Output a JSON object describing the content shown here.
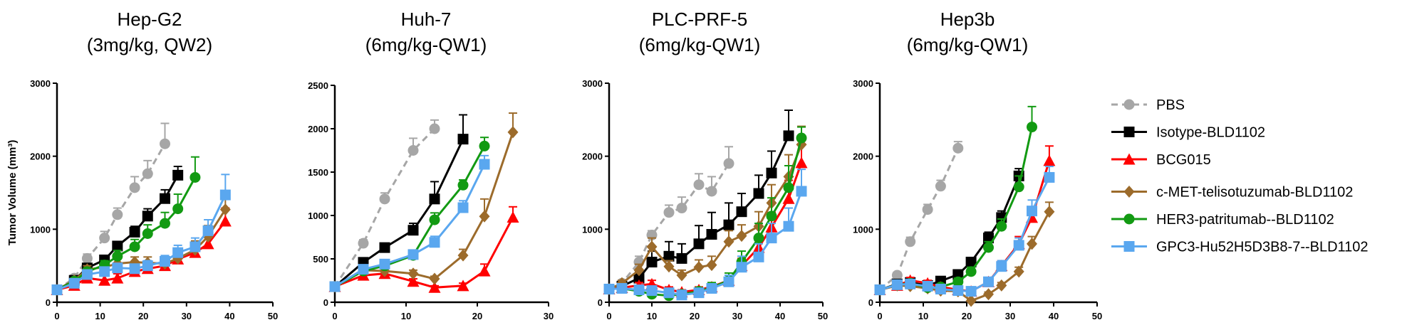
{
  "colors": {
    "PBS": "#a6a6a6",
    "Isotype-BLD1102": "#000000",
    "BCG015": "#ff0000",
    "c-MET-telisotuzumab-BLD1102": "#9c6b2b",
    "HER3-patritumab--BLD1102": "#129a12",
    "GPC3-Hu52H5D3B8-7--BLD1102": "#5aa7ef"
  },
  "legend": {
    "entries": [
      {
        "name": "PBS",
        "marker": "circle",
        "dashed": true
      },
      {
        "name": "Isotype-BLD1102",
        "marker": "square",
        "dashed": false
      },
      {
        "name": "BCG015",
        "marker": "triangle",
        "dashed": false
      },
      {
        "name": "c-MET-telisotuzumab-BLD1102",
        "marker": "diamond",
        "dashed": false
      },
      {
        "name": "HER3-patritumab--BLD1102",
        "marker": "circle",
        "dashed": false
      },
      {
        "name": "GPC3-Hu52H5D3B8-7--BLD1102",
        "marker": "square",
        "dashed": false
      }
    ]
  },
  "chart_data": [
    {
      "type": "line",
      "title": "Hep-G2",
      "subtitle": "(3mg/kg, QW2)",
      "ylabel": "Tumor Volume (mm³)",
      "xlim": [
        0,
        50
      ],
      "xticks": [
        0,
        10,
        20,
        30,
        40,
        50
      ],
      "ylim": [
        0,
        3000
      ],
      "yticks": [
        0,
        1000,
        2000,
        3000
      ],
      "series": [
        {
          "name": "PBS",
          "x": [
            0,
            4,
            7,
            11,
            14,
            18,
            21,
            25
          ],
          "y": [
            170,
            330,
            600,
            880,
            1200,
            1570,
            1760,
            2170
          ],
          "err": [
            20,
            40,
            60,
            90,
            90,
            150,
            180,
            280
          ]
        },
        {
          "name": "Isotype-BLD1102",
          "x": [
            0,
            4,
            7,
            11,
            14,
            18,
            21,
            25,
            28
          ],
          "y": [
            170,
            300,
            470,
            580,
            770,
            960,
            1180,
            1420,
            1740
          ],
          "err": [
            20,
            30,
            50,
            50,
            60,
            80,
            100,
            120,
            120
          ]
        },
        {
          "name": "BCG015",
          "x": [
            0,
            4,
            7,
            11,
            14,
            18,
            21,
            25,
            28,
            32,
            35,
            39
          ],
          "y": [
            170,
            230,
            330,
            300,
            330,
            420,
            460,
            500,
            590,
            680,
            800,
            1110
          ],
          "err": [
            20,
            30,
            40,
            60,
            60,
            60,
            70,
            80,
            100,
            120,
            150,
            180
          ]
        },
        {
          "name": "c-MET-telisotuzumab-BLD1102",
          "x": [
            0,
            4,
            7,
            11,
            14,
            18,
            21,
            25,
            28,
            32,
            35,
            39
          ],
          "y": [
            170,
            300,
            450,
            480,
            530,
            550,
            540,
            530,
            600,
            720,
            900,
            1270
          ],
          "err": [
            20,
            30,
            50,
            60,
            70,
            70,
            80,
            80,
            100,
            120,
            150,
            200
          ]
        },
        {
          "name": "HER3-patritumab--BLD1102",
          "x": [
            0,
            4,
            7,
            11,
            14,
            18,
            21,
            25,
            28,
            32
          ],
          "y": [
            170,
            290,
            420,
            510,
            630,
            760,
            940,
            1080,
            1280,
            1710
          ],
          "err": [
            20,
            30,
            50,
            60,
            80,
            100,
            120,
            150,
            200,
            280
          ]
        },
        {
          "name": "GPC3-Hu52H5D3B8-7--BLD1102",
          "x": [
            0,
            4,
            7,
            11,
            14,
            18,
            21,
            25,
            28,
            32,
            35,
            39
          ],
          "y": [
            170,
            260,
            380,
            420,
            470,
            460,
            500,
            560,
            680,
            760,
            980,
            1470
          ],
          "err": [
            20,
            30,
            40,
            50,
            60,
            60,
            70,
            80,
            100,
            120,
            150,
            280
          ]
        }
      ]
    },
    {
      "type": "line",
      "title": "Huh-7",
      "subtitle": "(6mg/kg-QW1)",
      "ylabel": "",
      "xlim": [
        0,
        30
      ],
      "xticks": [
        0,
        10,
        20,
        30
      ],
      "ylim": [
        0,
        2500
      ],
      "yticks": [
        0,
        500,
        1000,
        1500,
        2000,
        2500
      ],
      "series": [
        {
          "name": "PBS",
          "x": [
            0,
            4,
            7,
            11,
            14
          ],
          "y": [
            180,
            680,
            1190,
            1750,
            2000
          ],
          "err": [
            20,
            40,
            70,
            140,
            100
          ]
        },
        {
          "name": "Isotype-BLD1102",
          "x": [
            0,
            4,
            7,
            11,
            14,
            18
          ],
          "y": [
            180,
            460,
            630,
            830,
            1190,
            1880
          ],
          "err": [
            20,
            40,
            50,
            80,
            200,
            280
          ]
        },
        {
          "name": "BCG015",
          "x": [
            0,
            4,
            7,
            11,
            14,
            18,
            21,
            25
          ],
          "y": [
            180,
            310,
            330,
            240,
            170,
            190,
            360,
            980
          ],
          "err": [
            20,
            40,
            40,
            30,
            20,
            30,
            80,
            120
          ]
        },
        {
          "name": "c-MET-telisotuzumab-BLD1102",
          "x": [
            0,
            4,
            7,
            11,
            14,
            18,
            21,
            25
          ],
          "y": [
            180,
            370,
            360,
            330,
            270,
            540,
            990,
            1960
          ],
          "err": [
            20,
            40,
            40,
            40,
            30,
            70,
            200,
            220
          ]
        },
        {
          "name": "HER3-patritumab--BLD1102",
          "x": [
            0,
            4,
            7,
            11,
            14,
            18,
            21
          ],
          "y": [
            180,
            360,
            420,
            540,
            950,
            1350,
            1800
          ],
          "err": [
            20,
            40,
            40,
            40,
            80,
            60,
            100
          ]
        },
        {
          "name": "GPC3-Hu52H5D3B8-7--BLD1102",
          "x": [
            0,
            4,
            7,
            11,
            14,
            18,
            21
          ],
          "y": [
            180,
            380,
            440,
            550,
            690,
            1090,
            1590
          ],
          "err": [
            20,
            40,
            40,
            40,
            70,
            80,
            100
          ]
        }
      ]
    },
    {
      "type": "line",
      "title": "PLC-PRF-5",
      "subtitle": "(6mg/kg-QW1)",
      "ylabel": "",
      "xlim": [
        0,
        50
      ],
      "xticks": [
        0,
        10,
        20,
        30,
        40,
        50
      ],
      "ylim": [
        0,
        3000
      ],
      "yticks": [
        0,
        1000,
        2000,
        3000
      ],
      "series": [
        {
          "name": "PBS",
          "x": [
            0,
            3,
            7,
            10,
            14,
            17,
            21,
            24,
            28
          ],
          "y": [
            180,
            260,
            550,
            920,
            1230,
            1290,
            1610,
            1520,
            1900
          ],
          "err": [
            20,
            40,
            80,
            60,
            100,
            150,
            150,
            200,
            230
          ]
        },
        {
          "name": "Isotype-BLD1102",
          "x": [
            0,
            3,
            7,
            10,
            14,
            17,
            21,
            24,
            28,
            31,
            35,
            38,
            42
          ],
          "y": [
            180,
            220,
            330,
            550,
            630,
            600,
            800,
            930,
            1060,
            1240,
            1490,
            1770,
            2280
          ],
          "err": [
            20,
            30,
            80,
            150,
            200,
            200,
            250,
            300,
            300,
            250,
            250,
            300,
            350
          ]
        },
        {
          "name": "BCG015",
          "x": [
            0,
            3,
            7,
            10,
            14,
            17,
            21,
            24,
            28,
            31,
            35,
            38,
            42,
            45
          ],
          "y": [
            180,
            200,
            230,
            250,
            170,
            140,
            170,
            210,
            300,
            500,
            750,
            1030,
            1420,
            1910
          ],
          "err": [
            20,
            30,
            40,
            50,
            40,
            30,
            40,
            50,
            70,
            100,
            150,
            200,
            250,
            300
          ]
        },
        {
          "name": "c-MET-telisotuzumab-BLD1102",
          "x": [
            0,
            3,
            7,
            10,
            14,
            17,
            21,
            24,
            28,
            31,
            35,
            38,
            42,
            45
          ],
          "y": [
            180,
            260,
            440,
            760,
            490,
            370,
            480,
            510,
            830,
            910,
            1040,
            1360,
            1720,
            2160
          ],
          "err": [
            20,
            40,
            80,
            120,
            80,
            70,
            100,
            120,
            150,
            150,
            200,
            250,
            300,
            250
          ]
        },
        {
          "name": "HER3-patritumab--BLD1102",
          "x": [
            0,
            3,
            7,
            10,
            14,
            17,
            21,
            24,
            28,
            31,
            35,
            38,
            42,
            45
          ],
          "y": [
            180,
            190,
            150,
            110,
            90,
            110,
            150,
            200,
            300,
            550,
            880,
            1180,
            1570,
            2250
          ],
          "err": [
            20,
            30,
            40,
            40,
            30,
            40,
            50,
            70,
            100,
            150,
            200,
            250,
            300,
            150
          ]
        },
        {
          "name": "GPC3-Hu52H5D3B8-7--BLD1102",
          "x": [
            0,
            3,
            7,
            10,
            14,
            17,
            21,
            24,
            28,
            31,
            35,
            38,
            42,
            45
          ],
          "y": [
            180,
            190,
            170,
            160,
            130,
            100,
            130,
            190,
            280,
            480,
            620,
            880,
            1040,
            1520
          ],
          "err": [
            20,
            30,
            40,
            40,
            40,
            40,
            50,
            60,
            90,
            150,
            180,
            200,
            250,
            300
          ]
        }
      ]
    },
    {
      "type": "line",
      "title": "Hep3b",
      "subtitle": "(6mg/kg-QW1)",
      "ylabel": "",
      "xlim": [
        0,
        50
      ],
      "xticks": [
        0,
        10,
        20,
        30,
        40,
        50
      ],
      "ylim": [
        0,
        3000
      ],
      "yticks": [
        0,
        1000,
        2000,
        3000
      ],
      "series": [
        {
          "name": "PBS",
          "x": [
            0,
            4,
            7,
            11,
            14,
            18
          ],
          "y": [
            170,
            370,
            830,
            1270,
            1590,
            2110
          ],
          "err": [
            20,
            40,
            60,
            70,
            80,
            90
          ]
        },
        {
          "name": "Isotype-BLD1102",
          "x": [
            0,
            4,
            7,
            11,
            14,
            18,
            21,
            25,
            28,
            32
          ],
          "y": [
            170,
            250,
            270,
            230,
            290,
            380,
            550,
            880,
            1160,
            1730
          ],
          "err": [
            20,
            30,
            40,
            30,
            40,
            50,
            60,
            80,
            90,
            100
          ]
        },
        {
          "name": "BCG015",
          "x": [
            0,
            4,
            7,
            11,
            14,
            18,
            21,
            25,
            28,
            32,
            35,
            39
          ],
          "y": [
            170,
            230,
            300,
            260,
            210,
            170,
            150,
            280,
            500,
            800,
            1160,
            1940
          ],
          "err": [
            20,
            30,
            40,
            40,
            40,
            40,
            40,
            50,
            70,
            100,
            150,
            200
          ]
        },
        {
          "name": "c-MET-telisotuzumab-BLD1102",
          "x": [
            0,
            4,
            7,
            11,
            14,
            18,
            21,
            25,
            28,
            32,
            35,
            39
          ],
          "y": [
            170,
            230,
            220,
            190,
            160,
            150,
            20,
            110,
            230,
            420,
            800,
            1240
          ],
          "err": [
            20,
            30,
            30,
            30,
            30,
            30,
            20,
            30,
            40,
            60,
            100,
            130
          ]
        },
        {
          "name": "HER3-patritumab--BLD1102",
          "x": [
            0,
            4,
            7,
            11,
            14,
            18,
            21,
            25,
            28,
            32,
            35
          ],
          "y": [
            170,
            240,
            260,
            200,
            210,
            280,
            420,
            750,
            1040,
            1580,
            2400
          ],
          "err": [
            20,
            30,
            40,
            30,
            40,
            50,
            60,
            80,
            100,
            150,
            280
          ]
        },
        {
          "name": "GPC3-Hu52H5D3B8-7--BLD1102",
          "x": [
            0,
            4,
            7,
            11,
            14,
            18,
            21,
            25,
            28,
            32,
            35,
            39
          ],
          "y": [
            170,
            240,
            250,
            220,
            180,
            160,
            150,
            280,
            490,
            780,
            1250,
            1710
          ],
          "err": [
            20,
            30,
            40,
            40,
            40,
            40,
            40,
            60,
            80,
            100,
            150,
            150
          ]
        }
      ]
    }
  ]
}
